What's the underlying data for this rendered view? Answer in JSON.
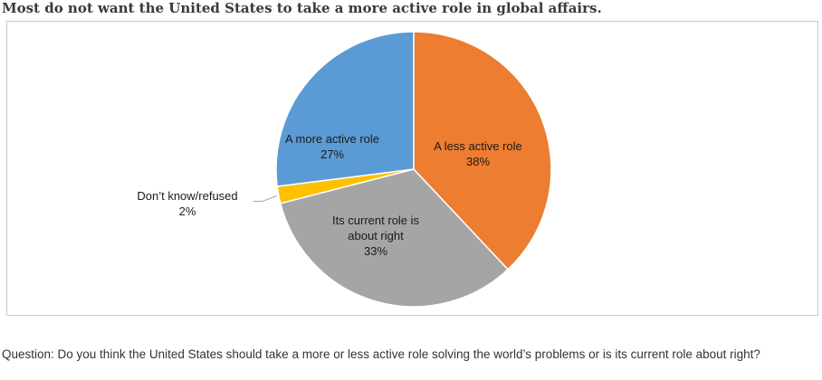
{
  "title": "Most do not want the United States to take a more active role in global affairs.",
  "question": "Question: Do you think the United States should take a more or less active role solving the world’s problems or is its current role about right?",
  "chart_data": {
    "type": "pie",
    "slices": [
      {
        "label": "A less active role",
        "value": 38,
        "value_label": "38%",
        "color": "#ED7D31"
      },
      {
        "label": "Its current role is about right",
        "value": 33,
        "value_label": "33%",
        "color": "#A5A5A5"
      },
      {
        "label": "Don’t know/refused",
        "value": 2,
        "value_label": "2%",
        "color": "#FFC000"
      },
      {
        "label": "A more active role",
        "value": 27,
        "value_label": "27%",
        "color": "#5B9BD5"
      }
    ]
  }
}
